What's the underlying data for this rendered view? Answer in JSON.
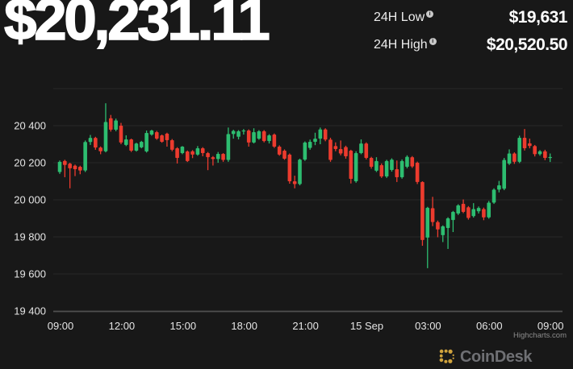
{
  "header": {
    "price": "$20,231.11",
    "info_glyph": "i",
    "stats": [
      {
        "label": "24H Low",
        "value": "$19,631"
      },
      {
        "label": "24H High",
        "value": "$20,520.50"
      }
    ]
  },
  "chart_data": {
    "type": "candlestick",
    "interval": "15m",
    "title": "",
    "x_labels": [
      "09:00",
      "12:00",
      "15:00",
      "18:00",
      "21:00",
      "15 Sep",
      "03:00",
      "06:00",
      "09:00"
    ],
    "y_ticks": [
      {
        "value": 20400,
        "label": "20 400"
      },
      {
        "value": 20200,
        "label": "20 200"
      },
      {
        "value": 20000,
        "label": "20 000"
      },
      {
        "value": 19800,
        "label": "19 800"
      },
      {
        "value": 19600,
        "label": "19 600"
      },
      {
        "value": 19400,
        "label": "19 400"
      }
    ],
    "unlabeled_gridline": 20600,
    "ylim": [
      19400,
      20600
    ],
    "up_color": "#2dbd70",
    "down_color": "#ec3b2e",
    "grid_color": "#282828",
    "axis_line_color": "#505050",
    "label_color": "#e5e5e5",
    "last_price": 20231.11,
    "low_24h": 19631,
    "high_24h": 20520.5,
    "candles": [
      [
        20150,
        20212,
        20140,
        20205
      ],
      [
        20210,
        20216,
        20122,
        20188
      ],
      [
        20195,
        20200,
        20062,
        20170
      ],
      [
        20184,
        20190,
        20128,
        20165
      ],
      [
        20178,
        20184,
        20138,
        20158
      ],
      [
        20158,
        20320,
        20150,
        20312
      ],
      [
        20312,
        20350,
        20296,
        20334
      ],
      [
        20334,
        20340,
        20270,
        20282
      ],
      [
        20282,
        20288,
        20246,
        20262
      ],
      [
        20262,
        20521,
        20256,
        20420
      ],
      [
        20440,
        20458,
        20368,
        20378
      ],
      [
        20378,
        20438,
        20370,
        20428
      ],
      [
        20400,
        20415,
        20300,
        20309
      ],
      [
        20296,
        20348,
        20290,
        20326
      ],
      [
        20326,
        20330,
        20258,
        20265
      ],
      [
        20265,
        20308,
        20260,
        20304
      ],
      [
        20283,
        20318,
        20278,
        20313
      ],
      [
        20261,
        20374,
        20255,
        20361
      ],
      [
        20352,
        20378,
        20346,
        20374
      ],
      [
        20365,
        20372,
        20324,
        20330
      ],
      [
        20348,
        20352,
        20308,
        20313
      ],
      [
        20357,
        20362,
        20287,
        20322
      ],
      [
        20322,
        20328,
        20262,
        20270
      ],
      [
        20278,
        20284,
        20196,
        20226
      ],
      [
        20252,
        20290,
        20246,
        20287
      ],
      [
        20261,
        20266,
        20204,
        20209
      ],
      [
        20262,
        20268,
        20225,
        20244
      ],
      [
        20244,
        20290,
        20238,
        20278
      ],
      [
        20278,
        20284,
        20235,
        20252
      ],
      [
        20252,
        20258,
        20160,
        20230
      ],
      [
        20230,
        20236,
        20185,
        20220
      ],
      [
        20220,
        20258,
        20200,
        20248
      ],
      [
        20248,
        20252,
        20205,
        20215
      ],
      [
        20215,
        20390,
        20205,
        20355
      ],
      [
        20355,
        20378,
        20330,
        20372
      ],
      [
        20340,
        20376,
        20326,
        20370
      ],
      [
        20370,
        20382,
        20352,
        20374
      ],
      [
        20374,
        20380,
        20287,
        20309
      ],
      [
        20309,
        20386,
        20304,
        20365
      ],
      [
        20330,
        20376,
        20324,
        20370
      ],
      [
        20370,
        20376,
        20310,
        20317
      ],
      [
        20317,
        20354,
        20304,
        20348
      ],
      [
        20352,
        20358,
        20280,
        20287
      ],
      [
        20287,
        20294,
        20238,
        20244
      ],
      [
        20265,
        20272,
        20216,
        20222
      ],
      [
        20244,
        20250,
        20087,
        20100
      ],
      [
        20100,
        20130,
        20062,
        20085
      ],
      [
        20085,
        20222,
        20078,
        20217
      ],
      [
        20217,
        20315,
        20210,
        20309
      ],
      [
        20280,
        20325,
        20270,
        20313
      ],
      [
        20313,
        20362,
        20295,
        20330
      ],
      [
        20330,
        20390,
        20300,
        20380
      ],
      [
        20380,
        20386,
        20316,
        20325
      ],
      [
        20325,
        20335,
        20205,
        20215
      ],
      [
        20290,
        20310,
        20262,
        20274
      ],
      [
        20274,
        20320,
        20240,
        20250
      ],
      [
        20285,
        20292,
        20222,
        20235
      ],
      [
        20265,
        20270,
        20088,
        20113
      ],
      [
        20100,
        20262,
        20092,
        20252
      ],
      [
        20252,
        20326,
        20246,
        20304
      ],
      [
        20304,
        20310,
        20218,
        20226
      ],
      [
        20226,
        20232,
        20168,
        20178
      ],
      [
        20157,
        20230,
        20150,
        20209
      ],
      [
        20187,
        20196,
        20118,
        20126
      ],
      [
        20126,
        20216,
        20118,
        20209
      ],
      [
        20161,
        20224,
        20152,
        20217
      ],
      [
        20165,
        20212,
        20096,
        20122
      ],
      [
        20122,
        20218,
        20114,
        20209
      ],
      [
        20178,
        20240,
        20170,
        20232
      ],
      [
        20230,
        20236,
        20172,
        20180
      ],
      [
        20200,
        20206,
        20085,
        20096
      ],
      [
        20096,
        20100,
        19752,
        19783
      ],
      [
        19796,
        19962,
        19631,
        19957
      ],
      [
        19955,
        20016,
        19858,
        19880
      ],
      [
        19880,
        19888,
        19798,
        19840
      ],
      [
        19809,
        19862,
        19772,
        19857
      ],
      [
        19848,
        19906,
        19735,
        19900
      ],
      [
        19891,
        19940,
        19826,
        19935
      ],
      [
        19926,
        19976,
        19918,
        19970
      ],
      [
        19978,
        20002,
        19928,
        19935
      ],
      [
        19960,
        19966,
        19893,
        19902
      ],
      [
        19912,
        19982,
        19904,
        19950
      ],
      [
        19938,
        19964,
        19926,
        19956
      ],
      [
        19950,
        19958,
        19890,
        19905
      ],
      [
        19905,
        19994,
        19898,
        19985
      ],
      [
        19985,
        20062,
        19978,
        20055
      ],
      [
        20055,
        20102,
        20040,
        20078
      ],
      [
        20060,
        20226,
        20052,
        20215
      ],
      [
        20195,
        20272,
        20188,
        20250
      ],
      [
        20250,
        20256,
        20194,
        20205
      ],
      [
        20205,
        20346,
        20198,
        20335
      ],
      [
        20335,
        20382,
        20266,
        20278
      ],
      [
        20305,
        20330,
        20278,
        20290
      ],
      [
        20290,
        20296,
        20234,
        20246
      ],
      [
        20246,
        20268,
        20238,
        20262
      ],
      [
        20262,
        20270,
        20214,
        20226
      ],
      [
        20226,
        20250,
        20204,
        20231
      ]
    ],
    "credit": "Highcharts.com"
  },
  "footer": {
    "brand": "CoinDesk"
  }
}
